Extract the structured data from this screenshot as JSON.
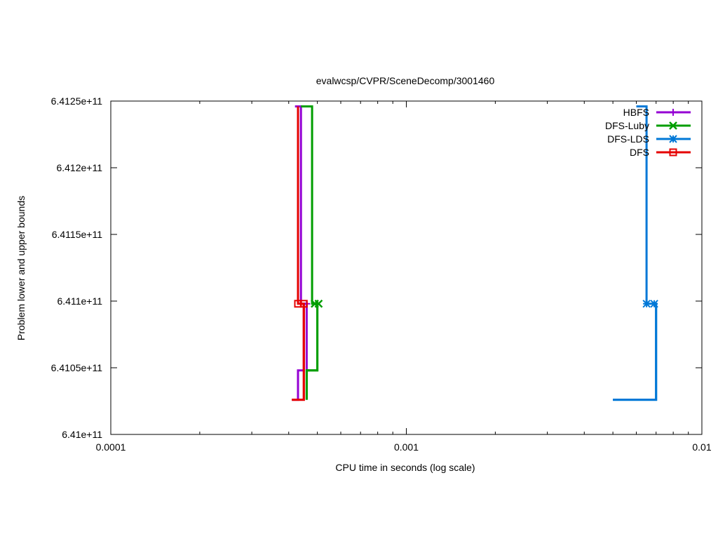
{
  "chart_data": {
    "type": "line",
    "title": "evalwcsp/CVPR/SceneDecomp/3001460",
    "xlabel": "CPU time in seconds (log scale)",
    "ylabel": "Problem lower and upper bounds",
    "xscale": "log",
    "xlim": [
      0.0001,
      0.01
    ],
    "ylim": [
      641000000000,
      641250000000
    ],
    "x_ticks": [
      {
        "value": 0.0001,
        "label": "0.0001"
      },
      {
        "value": 0.001,
        "label": "0.001"
      },
      {
        "value": 0.01,
        "label": "0.01"
      }
    ],
    "y_ticks": [
      {
        "value": 641000000000,
        "label": "6.41e+11"
      },
      {
        "value": 641050000000,
        "label": "6.4105e+11"
      },
      {
        "value": 641100000000,
        "label": "6.411e+11"
      },
      {
        "value": 641150000000,
        "label": "6.4115e+11"
      },
      {
        "value": 641200000000,
        "label": "6.412e+11"
      },
      {
        "value": 641250000000,
        "label": "6.4125e+11"
      }
    ],
    "grid": false,
    "legend_position": "top-right",
    "series": [
      {
        "name": "HBFS",
        "color": "#9400d3",
        "marker": "plus",
        "upper": [
          [
            0.00042,
            641246000000
          ],
          [
            0.00044,
            641246000000
          ],
          [
            0.00044,
            641098000000
          ],
          [
            0.00046,
            641098000000
          ],
          [
            0.00046,
            641048000000
          ],
          [
            0.00047,
            641048000000
          ]
        ],
        "lower": [
          [
            0.00041,
            641026000000
          ],
          [
            0.00043,
            641026000000
          ],
          [
            0.00043,
            641048000000
          ],
          [
            0.00045,
            641048000000
          ],
          [
            0.00045,
            641098000000
          ]
        ],
        "marker_points": [
          [
            0.00044,
            641098000000
          ],
          [
            0.00046,
            641098000000
          ]
        ]
      },
      {
        "name": "DFS-Luby",
        "color": "#009e00",
        "marker": "cross",
        "upper": [
          [
            0.00044,
            641246000000
          ],
          [
            0.00048,
            641246000000
          ],
          [
            0.00048,
            641098000000
          ],
          [
            0.0005,
            641098000000
          ],
          [
            0.0005,
            641048000000
          ],
          [
            0.00046,
            641048000000
          ],
          [
            0.00046,
            641026000000
          ]
        ],
        "lower": [
          [
            0.00046,
            641026000000
          ],
          [
            0.00046,
            641048000000
          ],
          [
            0.0005,
            641048000000
          ],
          [
            0.0005,
            641098000000
          ]
        ],
        "marker_points": [
          [
            0.00049,
            641098000000
          ],
          [
            0.000505,
            641098000000
          ]
        ]
      },
      {
        "name": "DFS-LDS",
        "color": "#0078d7",
        "marker": "star",
        "upper": [
          [
            0.006,
            641246000000
          ],
          [
            0.0065,
            641246000000
          ],
          [
            0.0065,
            641098000000
          ],
          [
            0.007,
            641098000000
          ],
          [
            0.007,
            641026000000
          ],
          [
            0.005,
            641026000000
          ]
        ],
        "lower": [
          [
            0.005,
            641026000000
          ],
          [
            0.007,
            641026000000
          ],
          [
            0.007,
            641098000000
          ]
        ],
        "marker_points": [
          [
            0.0065,
            641098000000
          ],
          [
            0.0069,
            641098000000
          ]
        ]
      },
      {
        "name": "DFS",
        "color": "#e50000",
        "marker": "square",
        "upper": [
          [
            0.00043,
            641246000000
          ],
          [
            0.00043,
            641098000000
          ],
          [
            0.00045,
            641098000000
          ],
          [
            0.00045,
            641026000000
          ],
          [
            0.00041,
            641026000000
          ]
        ],
        "lower": [
          [
            0.00041,
            641026000000
          ],
          [
            0.00045,
            641026000000
          ],
          [
            0.00045,
            641098000000
          ]
        ],
        "marker_points": [
          [
            0.00043,
            641098000000
          ],
          [
            0.00045,
            641098000000
          ]
        ]
      }
    ]
  }
}
